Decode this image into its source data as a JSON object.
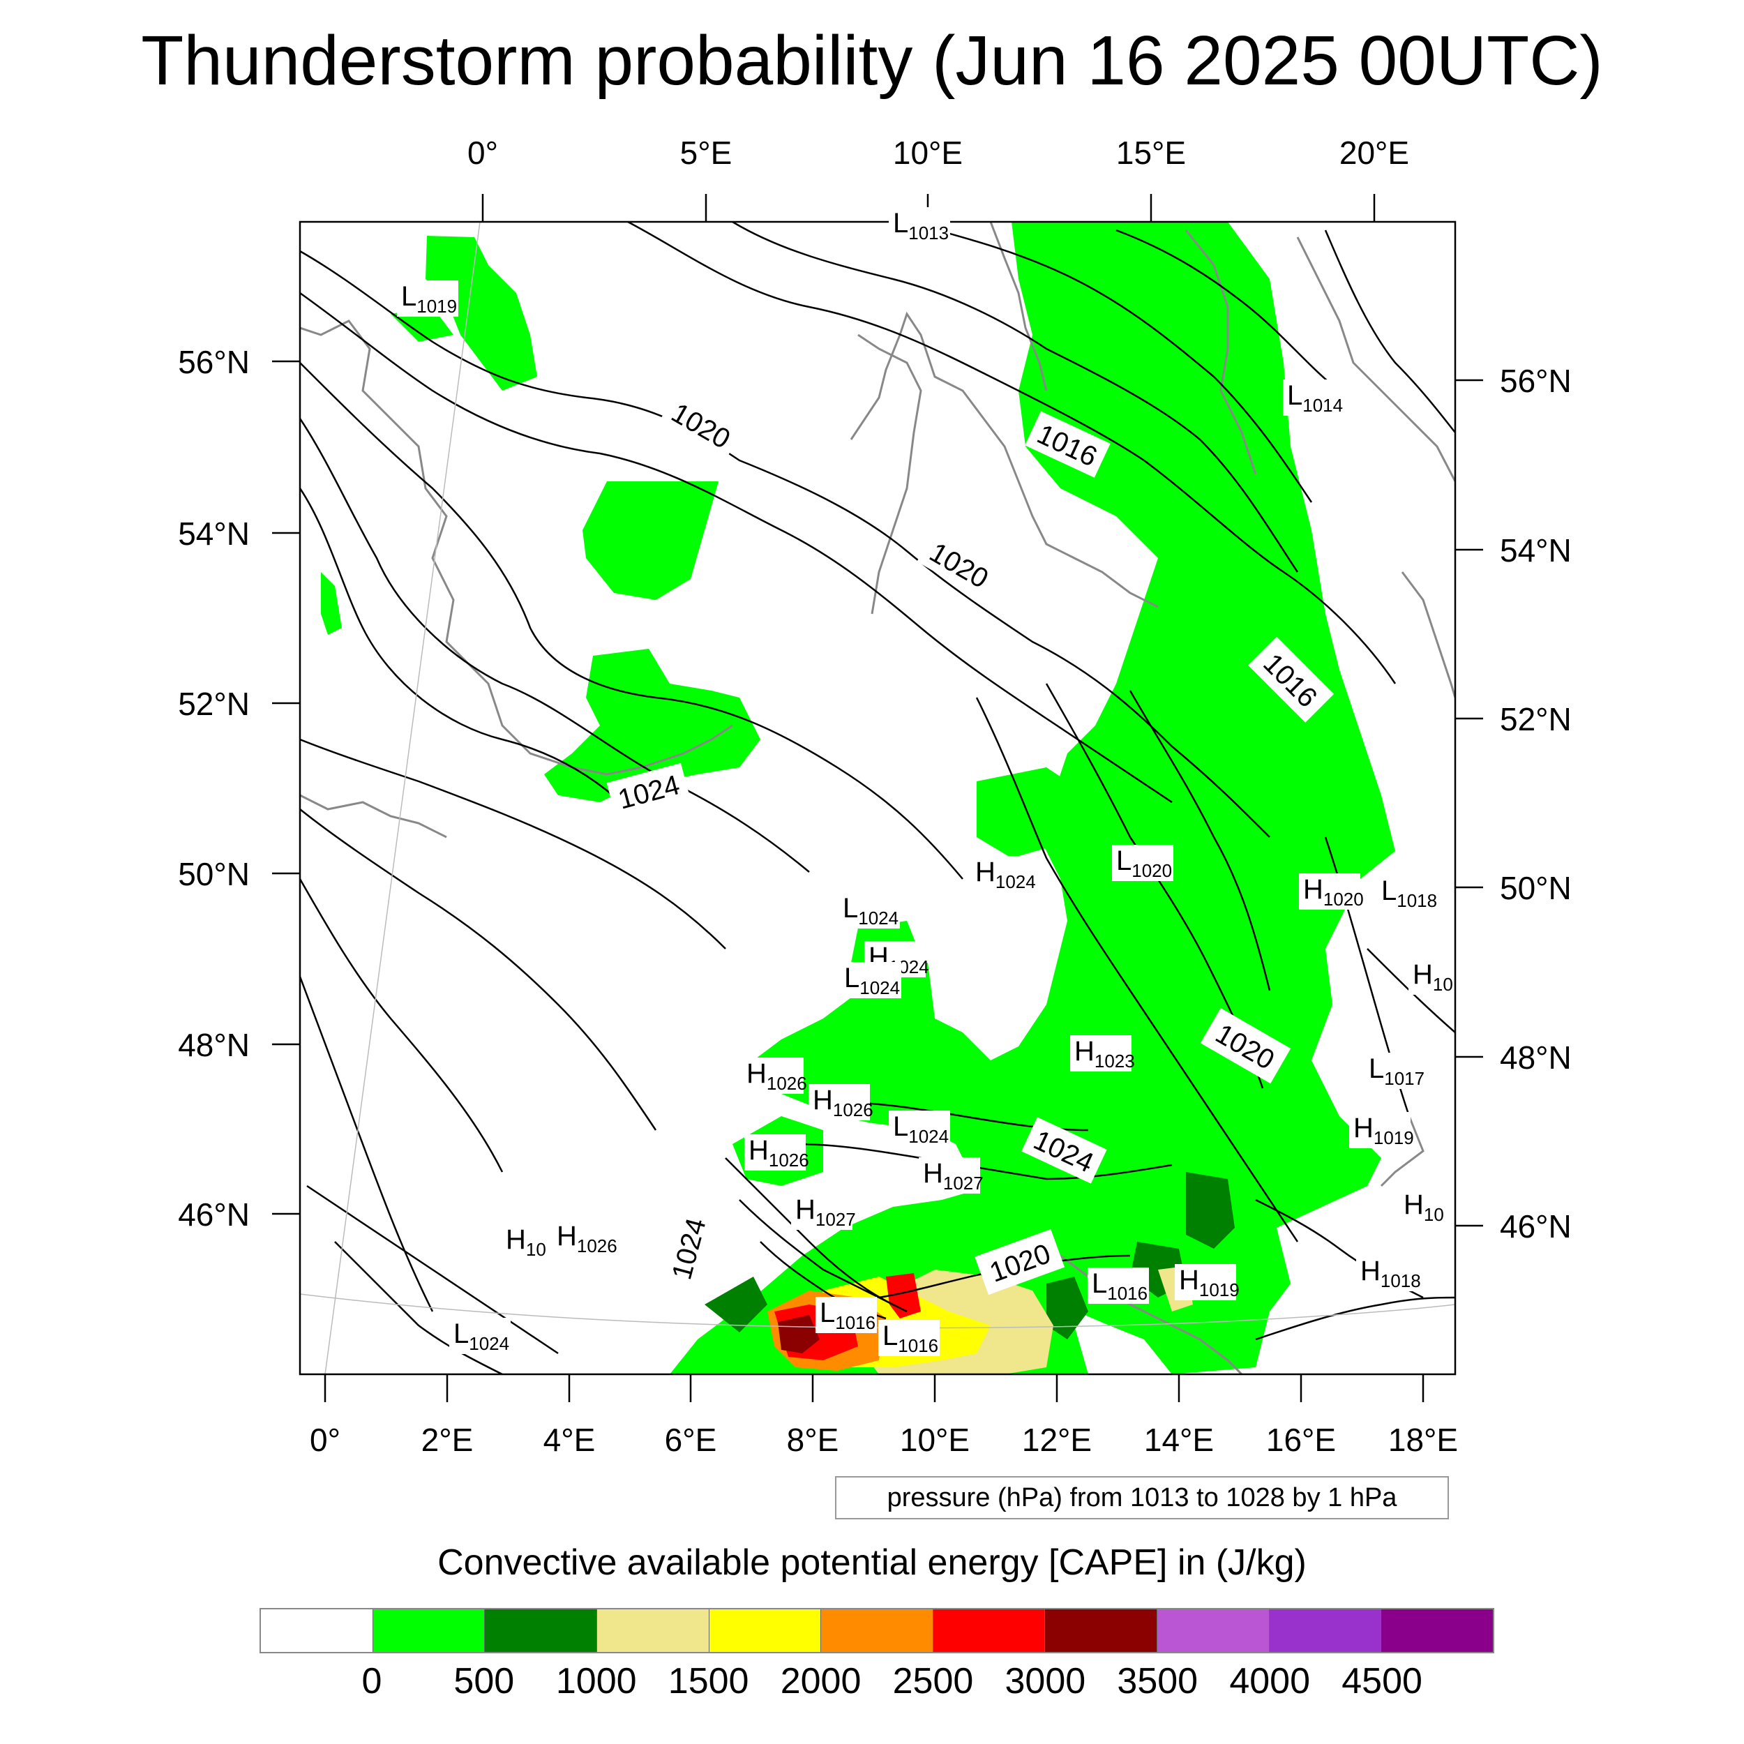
{
  "title": "Thunderstorm probability (Jun 16 2025 00UTC)",
  "map": {
    "top_lon_labels": [
      "0°",
      "5°E",
      "10°E",
      "15°E",
      "20°E"
    ],
    "bottom_lon_labels": [
      "0°",
      "2°E",
      "4°E",
      "6°E",
      "8°E",
      "10°E",
      "12°E",
      "14°E",
      "16°E",
      "18°E"
    ],
    "left_lat_labels": [
      "56°N",
      "54°N",
      "52°N",
      "50°N",
      "48°N",
      "46°N"
    ],
    "right_lat_labels": [
      "56°N",
      "54°N",
      "52°N",
      "50°N",
      "48°N",
      "46°N"
    ],
    "pressure_centers": [
      {
        "type": "L",
        "value": "1013"
      },
      {
        "type": "L",
        "value": "1019"
      },
      {
        "type": "L",
        "value": "1014"
      },
      {
        "type": "L",
        "value": "1020"
      },
      {
        "type": "H",
        "value": "1024"
      },
      {
        "type": "H",
        "value": "1020"
      },
      {
        "type": "L",
        "value": "1018"
      },
      {
        "type": "L",
        "value": "1024"
      },
      {
        "type": "H",
        "value": "1024"
      },
      {
        "type": "L",
        "value": "1024"
      },
      {
        "type": "H",
        "value": "10"
      },
      {
        "type": "H",
        "value": "1023"
      },
      {
        "type": "L",
        "value": "1017"
      },
      {
        "type": "H",
        "value": "1026"
      },
      {
        "type": "H",
        "value": "1026"
      },
      {
        "type": "L",
        "value": "1024"
      },
      {
        "type": "H",
        "value": "1019"
      },
      {
        "type": "H",
        "value": "1026"
      },
      {
        "type": "H",
        "value": "1027"
      },
      {
        "type": "H",
        "value": "10"
      },
      {
        "type": "H",
        "value": "1027"
      },
      {
        "type": "H",
        "value": "10"
      },
      {
        "type": "H",
        "value": "1026"
      },
      {
        "type": "L",
        "value": "1016"
      },
      {
        "type": "H",
        "value": "1019"
      },
      {
        "type": "H",
        "value": "1018"
      },
      {
        "type": "L",
        "value": "1016"
      },
      {
        "type": "L",
        "value": "1016"
      },
      {
        "type": "L",
        "value": "1024"
      }
    ],
    "isobar_labels": [
      "1020",
      "1016",
      "1020",
      "1016",
      "1024",
      "1020",
      "1024",
      "1024",
      "1020"
    ]
  },
  "contour_info": "pressure (hPa) from 1013 to 1028 by 1 hPa",
  "colorbar": {
    "title": "Convective available potential energy [CAPE] in (J/kg)",
    "colors": [
      "#ffffff",
      "#00ff00",
      "#008000",
      "#f0e68c",
      "#ffff00",
      "#ff8c00",
      "#ff0000",
      "#8b0000",
      "#ba55d3",
      "#9932cc",
      "#8b008b"
    ],
    "labels": [
      "0",
      "500",
      "1000",
      "1500",
      "2000",
      "2500",
      "3000",
      "3500",
      "4000",
      "4500"
    ]
  }
}
